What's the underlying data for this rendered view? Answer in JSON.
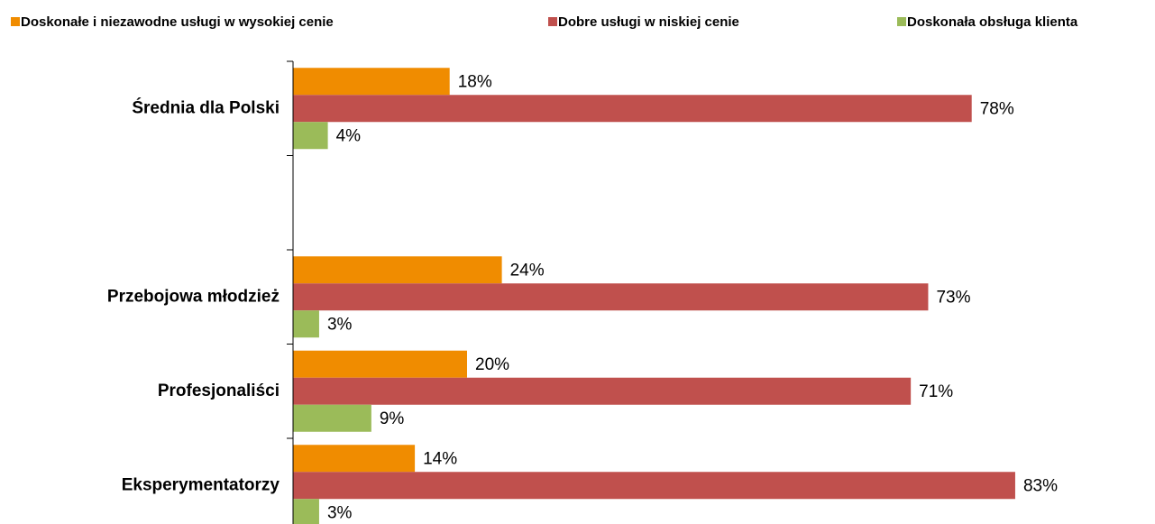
{
  "chart_data": {
    "type": "bar",
    "orientation": "horizontal",
    "categories": [
      "Średnia dla Polski",
      null,
      "Przebojowa młodzież",
      "Profesjonaliści",
      "Eksperymentatorzy"
    ],
    "series": [
      {
        "name": "Doskonałe i niezawodne usługi w wysokiej cenie",
        "color": "#f08c00",
        "values": [
          18,
          null,
          24,
          20,
          14
        ],
        "value_labels": [
          "18%",
          null,
          "24%",
          "20%",
          "14%"
        ]
      },
      {
        "name": "Dobre usługi w niskiej cenie",
        "color": "#c0504d",
        "values": [
          78,
          null,
          73,
          71,
          83
        ],
        "value_labels": [
          "78%",
          null,
          "73%",
          "71%",
          "83%"
        ]
      },
      {
        "name": "Doskonała obsługa klienta",
        "color": "#9bbb59",
        "values": [
          4,
          null,
          3,
          9,
          3
        ],
        "value_labels": [
          "4%",
          null,
          "3%",
          "9%",
          "3%"
        ]
      }
    ],
    "xlim": [
      0,
      100
    ],
    "legend": "top"
  }
}
